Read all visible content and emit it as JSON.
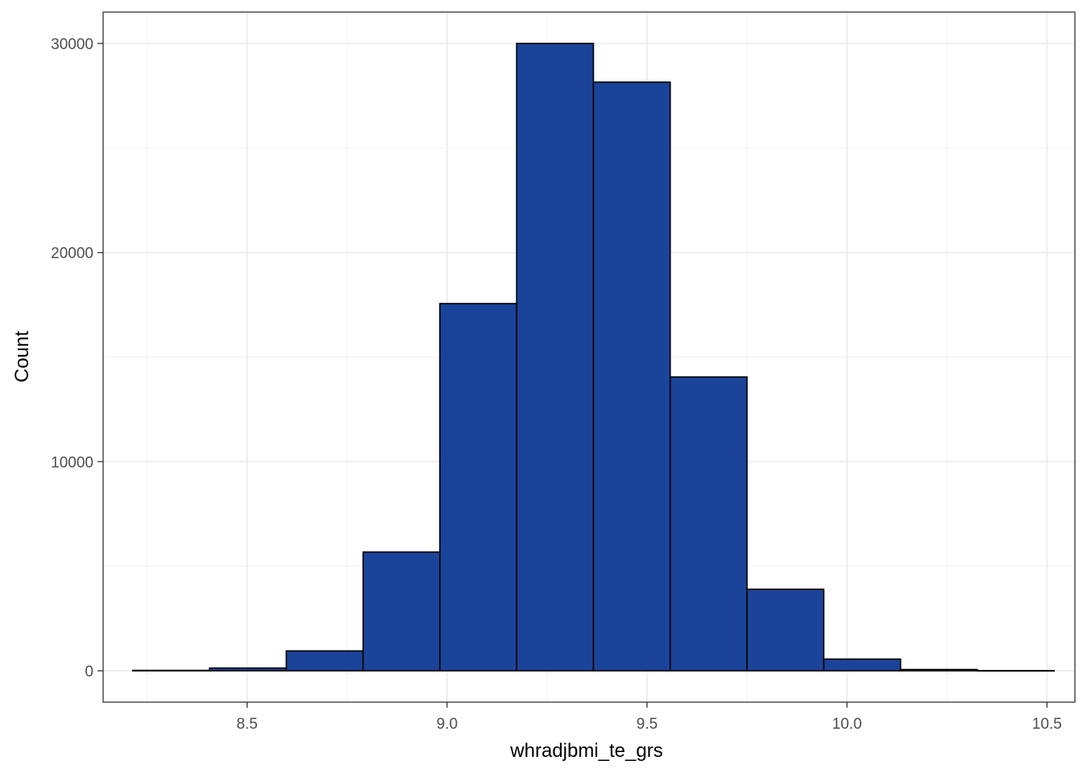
{
  "chart_data": {
    "type": "bar",
    "title": "",
    "xlabel": "whradjbmi_te_grs",
    "ylabel": "Count",
    "bar_color": "#1a4499",
    "bar_edge_color": "#000000",
    "bins": [
      {
        "x0": 8.214,
        "x1": 8.406,
        "count": 20
      },
      {
        "x0": 8.406,
        "x1": 8.598,
        "count": 130
      },
      {
        "x0": 8.598,
        "x1": 8.79,
        "count": 950
      },
      {
        "x0": 8.79,
        "x1": 8.982,
        "count": 5680
      },
      {
        "x0": 8.982,
        "x1": 9.174,
        "count": 17560
      },
      {
        "x0": 9.174,
        "x1": 9.366,
        "count": 30000
      },
      {
        "x0": 9.366,
        "x1": 9.558,
        "count": 28150
      },
      {
        "x0": 9.558,
        "x1": 9.75,
        "count": 14050
      },
      {
        "x0": 9.75,
        "x1": 9.942,
        "count": 3900
      },
      {
        "x0": 9.942,
        "x1": 10.134,
        "count": 560
      },
      {
        "x0": 10.134,
        "x1": 10.326,
        "count": 60
      },
      {
        "x0": 10.326,
        "x1": 10.518,
        "count": 10
      }
    ],
    "x_ticks": [
      8.5,
      9.0,
      9.5,
      10.0,
      10.5
    ],
    "x_tick_labels": [
      "8.5",
      "9.0",
      "9.5",
      "10.0",
      "10.5"
    ],
    "y_ticks": [
      0,
      10000,
      20000,
      30000
    ],
    "y_tick_labels": [
      "0",
      "10000",
      "20000",
      "30000"
    ],
    "xlim": [
      8.14,
      10.57
    ],
    "ylim": [
      -1500,
      31500
    ],
    "grid": true,
    "legend": "none"
  }
}
